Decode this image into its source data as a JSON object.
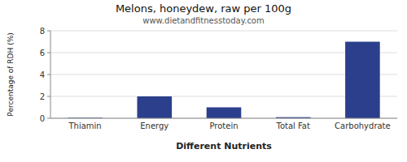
{
  "chart_data": {
    "type": "bar",
    "title": "Melons, honeydew, raw per 100g",
    "subtitle": "www.dietandfitnesstoday.com",
    "xlabel": "Different Nutrients",
    "ylabel": "Percentage of RDH (%)",
    "categories": [
      "Thiamin",
      "Energy",
      "Protein",
      "Total Fat",
      "Carbohydrate"
    ],
    "values": [
      0.05,
      2.0,
      1.0,
      0.1,
      7.0
    ],
    "color": "#2b3f8c",
    "ylim": [
      0,
      8
    ],
    "yticks": [
      0,
      2,
      4,
      6,
      8
    ],
    "grid": true
  }
}
